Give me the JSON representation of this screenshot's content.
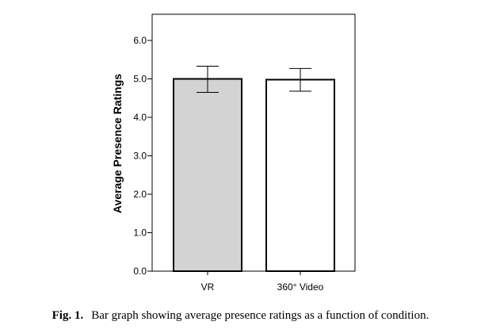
{
  "chart_data": {
    "type": "bar",
    "categories": [
      "VR",
      "360° Video"
    ],
    "values": [
      5.0,
      4.98
    ],
    "error_bars": [
      {
        "low": 4.65,
        "high": 5.33
      },
      {
        "low": 4.68,
        "high": 5.27
      }
    ],
    "ylabel": "Average Presence Ratings",
    "xlabel": "",
    "ylim": [
      0,
      6.6
    ],
    "yticks": [
      "0.0",
      "1.0",
      "2.0",
      "3.0",
      "4.0",
      "5.0",
      "6.0"
    ],
    "ytick_values": [
      0,
      1,
      2,
      3,
      4,
      5,
      6
    ],
    "bar_colors": [
      "#d3d3d3",
      "#ffffff"
    ],
    "edge_color": "#000000",
    "grid": false,
    "legend": "none"
  },
  "caption": {
    "label": "Fig. 1.",
    "text": "Bar graph showing average presence ratings as a function of condition."
  }
}
